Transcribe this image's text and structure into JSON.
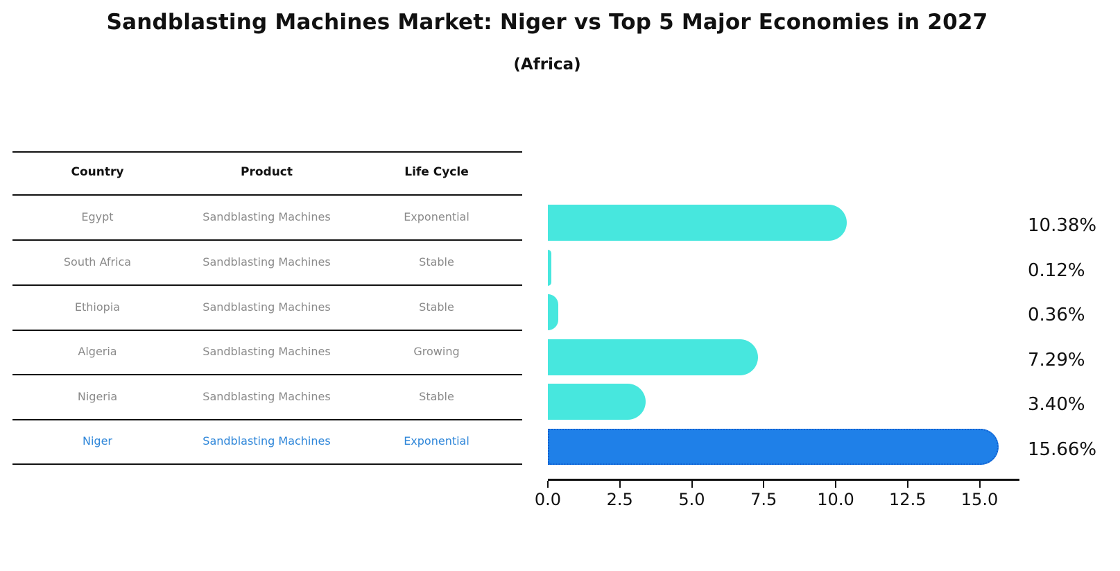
{
  "title": "Sandblasting Machines Market: Niger vs Top 5 Major Economies in 2027",
  "subtitle": "(Africa)",
  "table": {
    "headers": [
      "Country",
      "Product",
      "Life Cycle"
    ],
    "rows": [
      {
        "country": "Egypt",
        "product": "Sandblasting Machines",
        "life_cycle": "Exponential",
        "highlight": false
      },
      {
        "country": "South Africa",
        "product": "Sandblasting Machines",
        "life_cycle": "Stable",
        "highlight": false
      },
      {
        "country": "Ethiopia",
        "product": "Sandblasting Machines",
        "life_cycle": "Stable",
        "highlight": false
      },
      {
        "country": "Algeria",
        "product": "Sandblasting Machines",
        "life_cycle": "Growing",
        "highlight": false
      },
      {
        "country": "Nigeria",
        "product": "Sandblasting Machines",
        "life_cycle": "Stable",
        "highlight": false
      },
      {
        "country": "Niger",
        "product": "Sandblasting Machines",
        "life_cycle": "Exponential",
        "highlight": true
      }
    ]
  },
  "chart_data": {
    "type": "bar",
    "orientation": "horizontal",
    "title": "Sandblasting Machines Market: Niger vs Top 5 Major Economies in 2027 (Africa)",
    "categories": [
      "Egypt",
      "South Africa",
      "Ethiopia",
      "Algeria",
      "Nigeria",
      "Niger"
    ],
    "values": [
      10.38,
      0.12,
      0.36,
      7.29,
      3.4,
      15.66
    ],
    "value_labels": [
      "10.38%",
      "0.12%",
      "0.36%",
      "7.29%",
      "3.40%",
      "15.66%"
    ],
    "highlight_index": 5,
    "x_ticks": [
      {
        "value": 0.0,
        "label": "0.0"
      },
      {
        "value": 2.5,
        "label": "2.5"
      },
      {
        "value": 5.0,
        "label": "5.0"
      },
      {
        "value": 7.5,
        "label": "7.5"
      },
      {
        "value": 10.0,
        "label": "10.0"
      },
      {
        "value": 12.5,
        "label": "12.5"
      },
      {
        "value": 15.0,
        "label": "15.0"
      }
    ],
    "xlim": [
      0,
      16.39
    ],
    "grid": false,
    "legend": "none",
    "xlabel": "",
    "ylabel": ""
  },
  "colors": {
    "bar": "#47E7DE",
    "highlight_bar": "#1F80E8",
    "highlight_border": "#0f5fd1",
    "highlight_text": "#2e86d9",
    "table_text": "#8a8a8a",
    "axis": "#111111"
  }
}
